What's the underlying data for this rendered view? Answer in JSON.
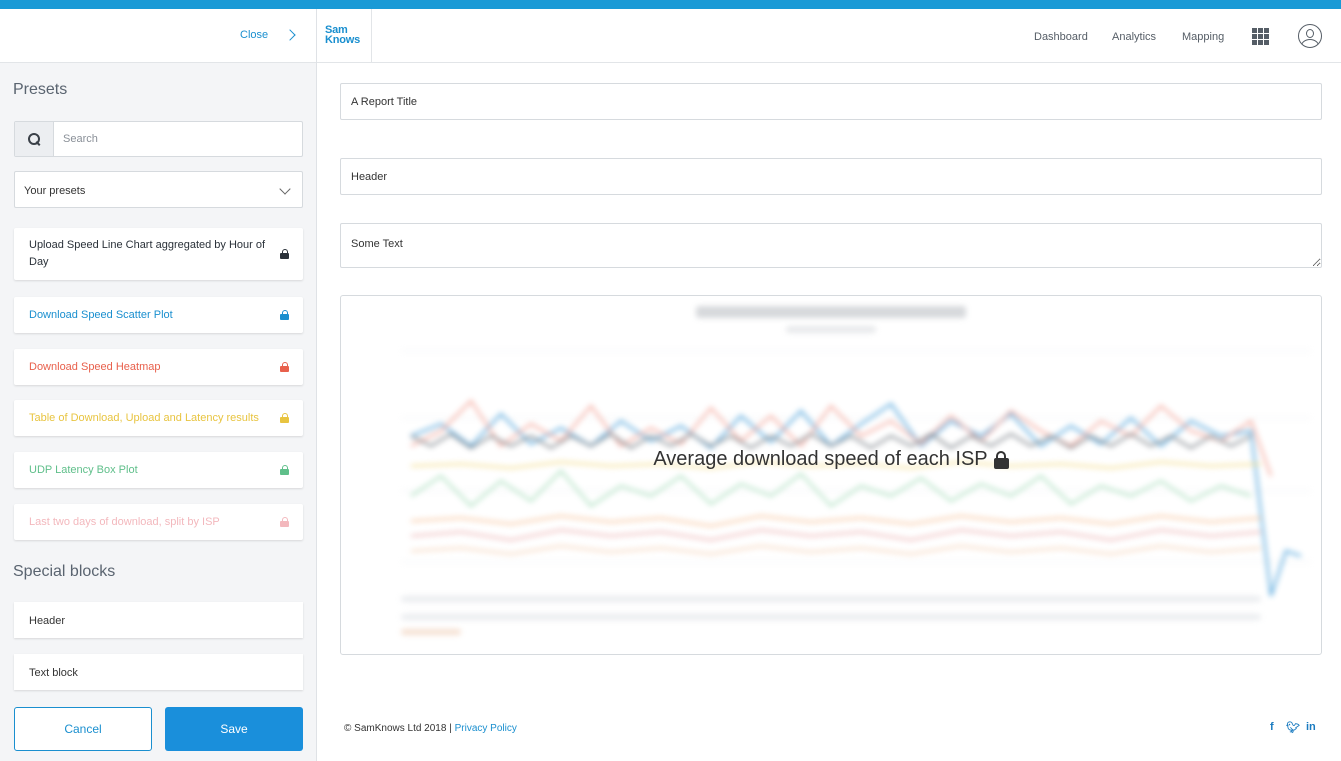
{
  "sidebar": {
    "close_label": "Close",
    "presets_title": "Presets",
    "search": {
      "placeholder": "Search"
    },
    "preset_select": {
      "selected": "Your presets"
    },
    "presets": [
      {
        "label": "Upload Speed Line Chart aggregated by Hour of Day",
        "color": "#2a3139"
      },
      {
        "label": "Download Speed Scatter Plot",
        "color": "#1a8fcf"
      },
      {
        "label": "Download Speed Heatmap",
        "color": "#e8604c"
      },
      {
        "label": "Table of Download, Upload and Latency results",
        "color": "#e8c440"
      },
      {
        "label": "UDP Latency Box Plot",
        "color": "#5fbf8a"
      },
      {
        "label": "Last two days of download, split by ISP",
        "color": "#f3b8bd"
      }
    ],
    "special_title": "Special blocks",
    "blocks": [
      {
        "label": "Header"
      },
      {
        "label": "Text block"
      }
    ],
    "cancel_label": "Cancel",
    "save_label": "Save"
  },
  "header": {
    "logo_line1": "Sam",
    "logo_line2": "Knows",
    "nav": [
      "Dashboard",
      "Analytics",
      "Mapping"
    ],
    "grid_icon": "apps-grid-icon",
    "user_icon": "user-account-icon"
  },
  "main": {
    "report_title_value": "A Report Title",
    "header_value": "Header",
    "text_value": "Some Text",
    "chart_overlay_title": "Average download speed of each ISP"
  },
  "footer": {
    "copyright": "© SamKnows Ltd 2018 |",
    "privacy_label": "Privacy Policy",
    "social_icons": [
      "facebook-icon",
      "twitter-icon",
      "linkedin-icon"
    ]
  },
  "colors": {
    "accent": "#1a9ad6",
    "primary_button": "#1a8fdb"
  }
}
